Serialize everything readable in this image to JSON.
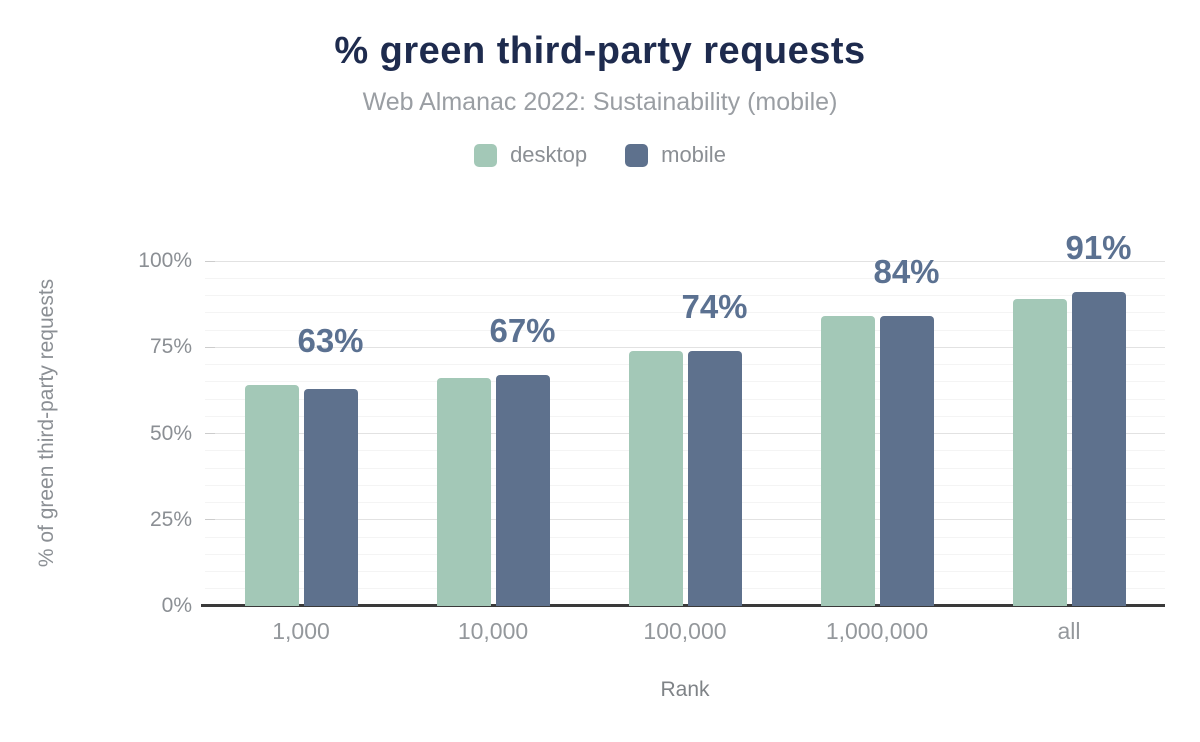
{
  "title": "% green third-party requests",
  "subtitle": "Web Almanac 2022: Sustainability (mobile)",
  "colors": {
    "title_text": "#1e2b4e",
    "subtitle_text": "#9a9ea3",
    "axis_text": "#8b8f94",
    "data_label_text": "#5b7191",
    "baseline": "#3a3a3a",
    "grid_major": "#e2e2e2",
    "grid_minor": "#f4f4f4",
    "desktop_bar": "#a3c8b7",
    "mobile_bar": "#5e718d"
  },
  "chart_data": {
    "type": "bar",
    "title": "% green third-party requests",
    "subtitle": "Web Almanac 2022: Sustainability (mobile)",
    "categories": [
      "1,000",
      "10,000",
      "100,000",
      "1,000,000",
      "all"
    ],
    "series": [
      {
        "name": "desktop",
        "color": "#a3c8b7",
        "values": [
          64,
          66,
          74,
          84,
          89
        ]
      },
      {
        "name": "mobile",
        "color": "#5e718d",
        "values": [
          63,
          67,
          74,
          84,
          91
        ]
      }
    ],
    "data_labels": [
      "63%",
      "67%",
      "74%",
      "84%",
      "91%"
    ],
    "data_labels_series": "mobile",
    "xlabel": "Rank",
    "ylabel": "% of green third-party requests",
    "ylim": [
      0,
      100
    ],
    "y_tick_values": [
      0,
      25,
      50,
      75,
      100
    ],
    "y_tick_labels": [
      "0%",
      "25%",
      "50%",
      "75%",
      "100%"
    ],
    "y_minor_step": 5,
    "grid": "horizontal",
    "legend_position": "top"
  }
}
